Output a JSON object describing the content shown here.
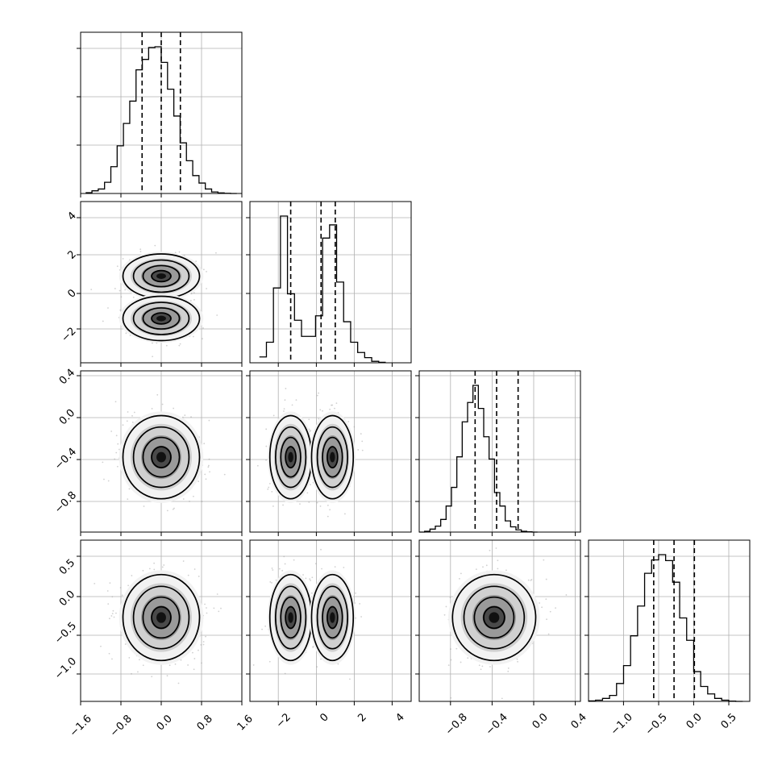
{
  "figure": {
    "type": "corner_plot",
    "n_parameters": 4,
    "histogram_color": "#000000",
    "contour_color": "#000000",
    "scatter_color": "#9a9a9a",
    "quantile_line_style": "dashed",
    "grid": true
  },
  "chart_data": [
    {
      "panel": "diag-0",
      "type": "histogram",
      "parameter": 0,
      "bin_start": -1.5,
      "bin_width": 0.125,
      "counts": [
        5,
        18,
        30,
        75,
        180,
        320,
        470,
        620,
        830,
        900,
        980,
        985,
        880,
        700,
        520,
        340,
        220,
        120,
        70,
        30,
        10,
        4,
        1,
        0
      ],
      "quantiles": [
        -0.38,
        0.0,
        0.38
      ],
      "xlim": [
        -1.6,
        1.6
      ]
    },
    {
      "panel": "diag-1",
      "type": "histogram",
      "parameter": 1,
      "bin_start": -3.0,
      "bin_width": 0.37,
      "counts": [
        40,
        140,
        510,
        1000,
        470,
        290,
        180,
        180,
        320,
        850,
        940,
        550,
        280,
        140,
        70,
        35,
        10,
        3
      ],
      "quantiles": [
        -1.35,
        0.25,
        1.0
      ],
      "xlim": [
        -3.5,
        5.0
      ]
    },
    {
      "panel": "diag-2",
      "type": "histogram",
      "parameter": 2,
      "bin_start": -1.1,
      "bin_width": 0.05,
      "counts": [
        0,
        5,
        20,
        40,
        85,
        175,
        300,
        505,
        740,
        870,
        985,
        830,
        640,
        490,
        265,
        175,
        75,
        35,
        15,
        5,
        2,
        0
      ],
      "quantiles": [
        -0.58,
        -0.38,
        -0.18
      ],
      "xlim": [
        -1.1,
        0.4
      ]
    },
    {
      "panel": "diag-3",
      "type": "histogram",
      "parameter": 3,
      "bin_start": -1.5,
      "bin_width": 0.1,
      "counts": [
        3,
        8,
        20,
        40,
        120,
        240,
        440,
        640,
        860,
        950,
        985,
        945,
        800,
        560,
        410,
        200,
        100,
        50,
        20,
        8,
        2,
        0
      ],
      "quantiles": [
        -0.57,
        -0.28,
        0.01
      ],
      "xlim": [
        -1.5,
        0.8
      ]
    },
    {
      "panel": "pair-0-1",
      "type": "scatter",
      "x_parameter": 0,
      "y_parameter": 1,
      "modes": [
        {
          "x": 0.0,
          "y": 0.8
        },
        {
          "x": 0.0,
          "y": -1.3
        }
      ],
      "xlim": [
        -1.6,
        1.6
      ],
      "ylim": [
        -3.5,
        4.5
      ]
    },
    {
      "panel": "pair-0-2",
      "type": "scatter",
      "x_parameter": 0,
      "y_parameter": 2,
      "modes": [
        {
          "x": 0.0,
          "y": -0.38
        }
      ],
      "xlim": [
        -1.6,
        1.6
      ],
      "ylim": [
        -1.1,
        0.45
      ]
    },
    {
      "panel": "pair-1-2",
      "type": "scatter",
      "x_parameter": 1,
      "y_parameter": 2,
      "modes": [
        {
          "x": -1.35,
          "y": -0.38
        },
        {
          "x": 0.85,
          "y": -0.38
        }
      ],
      "xlim": [
        -3.5,
        5.0
      ],
      "ylim": [
        -1.1,
        0.45
      ]
    },
    {
      "panel": "pair-0-3",
      "type": "scatter",
      "x_parameter": 0,
      "y_parameter": 3,
      "modes": [
        {
          "x": 0.0,
          "y": -0.28
        }
      ],
      "xlim": [
        -1.6,
        1.6
      ],
      "ylim": [
        -1.45,
        0.8
      ]
    },
    {
      "panel": "pair-1-3",
      "type": "scatter",
      "x_parameter": 1,
      "y_parameter": 3,
      "modes": [
        {
          "x": -1.35,
          "y": -0.28
        },
        {
          "x": 0.85,
          "y": -0.28
        }
      ],
      "xlim": [
        -3.5,
        5.0
      ],
      "ylim": [
        -1.45,
        0.8
      ]
    },
    {
      "panel": "pair-2-3",
      "type": "scatter",
      "x_parameter": 2,
      "y_parameter": 3,
      "modes": [
        {
          "x": -0.38,
          "y": -0.28
        }
      ],
      "xlim": [
        -1.1,
        0.45
      ],
      "ylim": [
        -1.45,
        0.8
      ]
    }
  ],
  "axes": {
    "x_tick_labels": [
      [
        "−1.6",
        "−0.8",
        "0.0",
        "0.8",
        "1.6"
      ],
      [
        "−2",
        "0",
        "2",
        "4"
      ],
      [
        "−0.8",
        "−0.4",
        "0.0",
        "0.4"
      ],
      [
        "−1.0",
        "−0.5",
        "0.0",
        "0.5"
      ]
    ],
    "y_tick_labels": [
      [],
      [
        "4",
        "2",
        "0",
        "−2"
      ],
      [
        "0.4",
        "0.0",
        "−0.4",
        "−0.8"
      ],
      [
        "0.5",
        "0.0",
        "−0.5",
        "−1.0"
      ]
    ]
  }
}
